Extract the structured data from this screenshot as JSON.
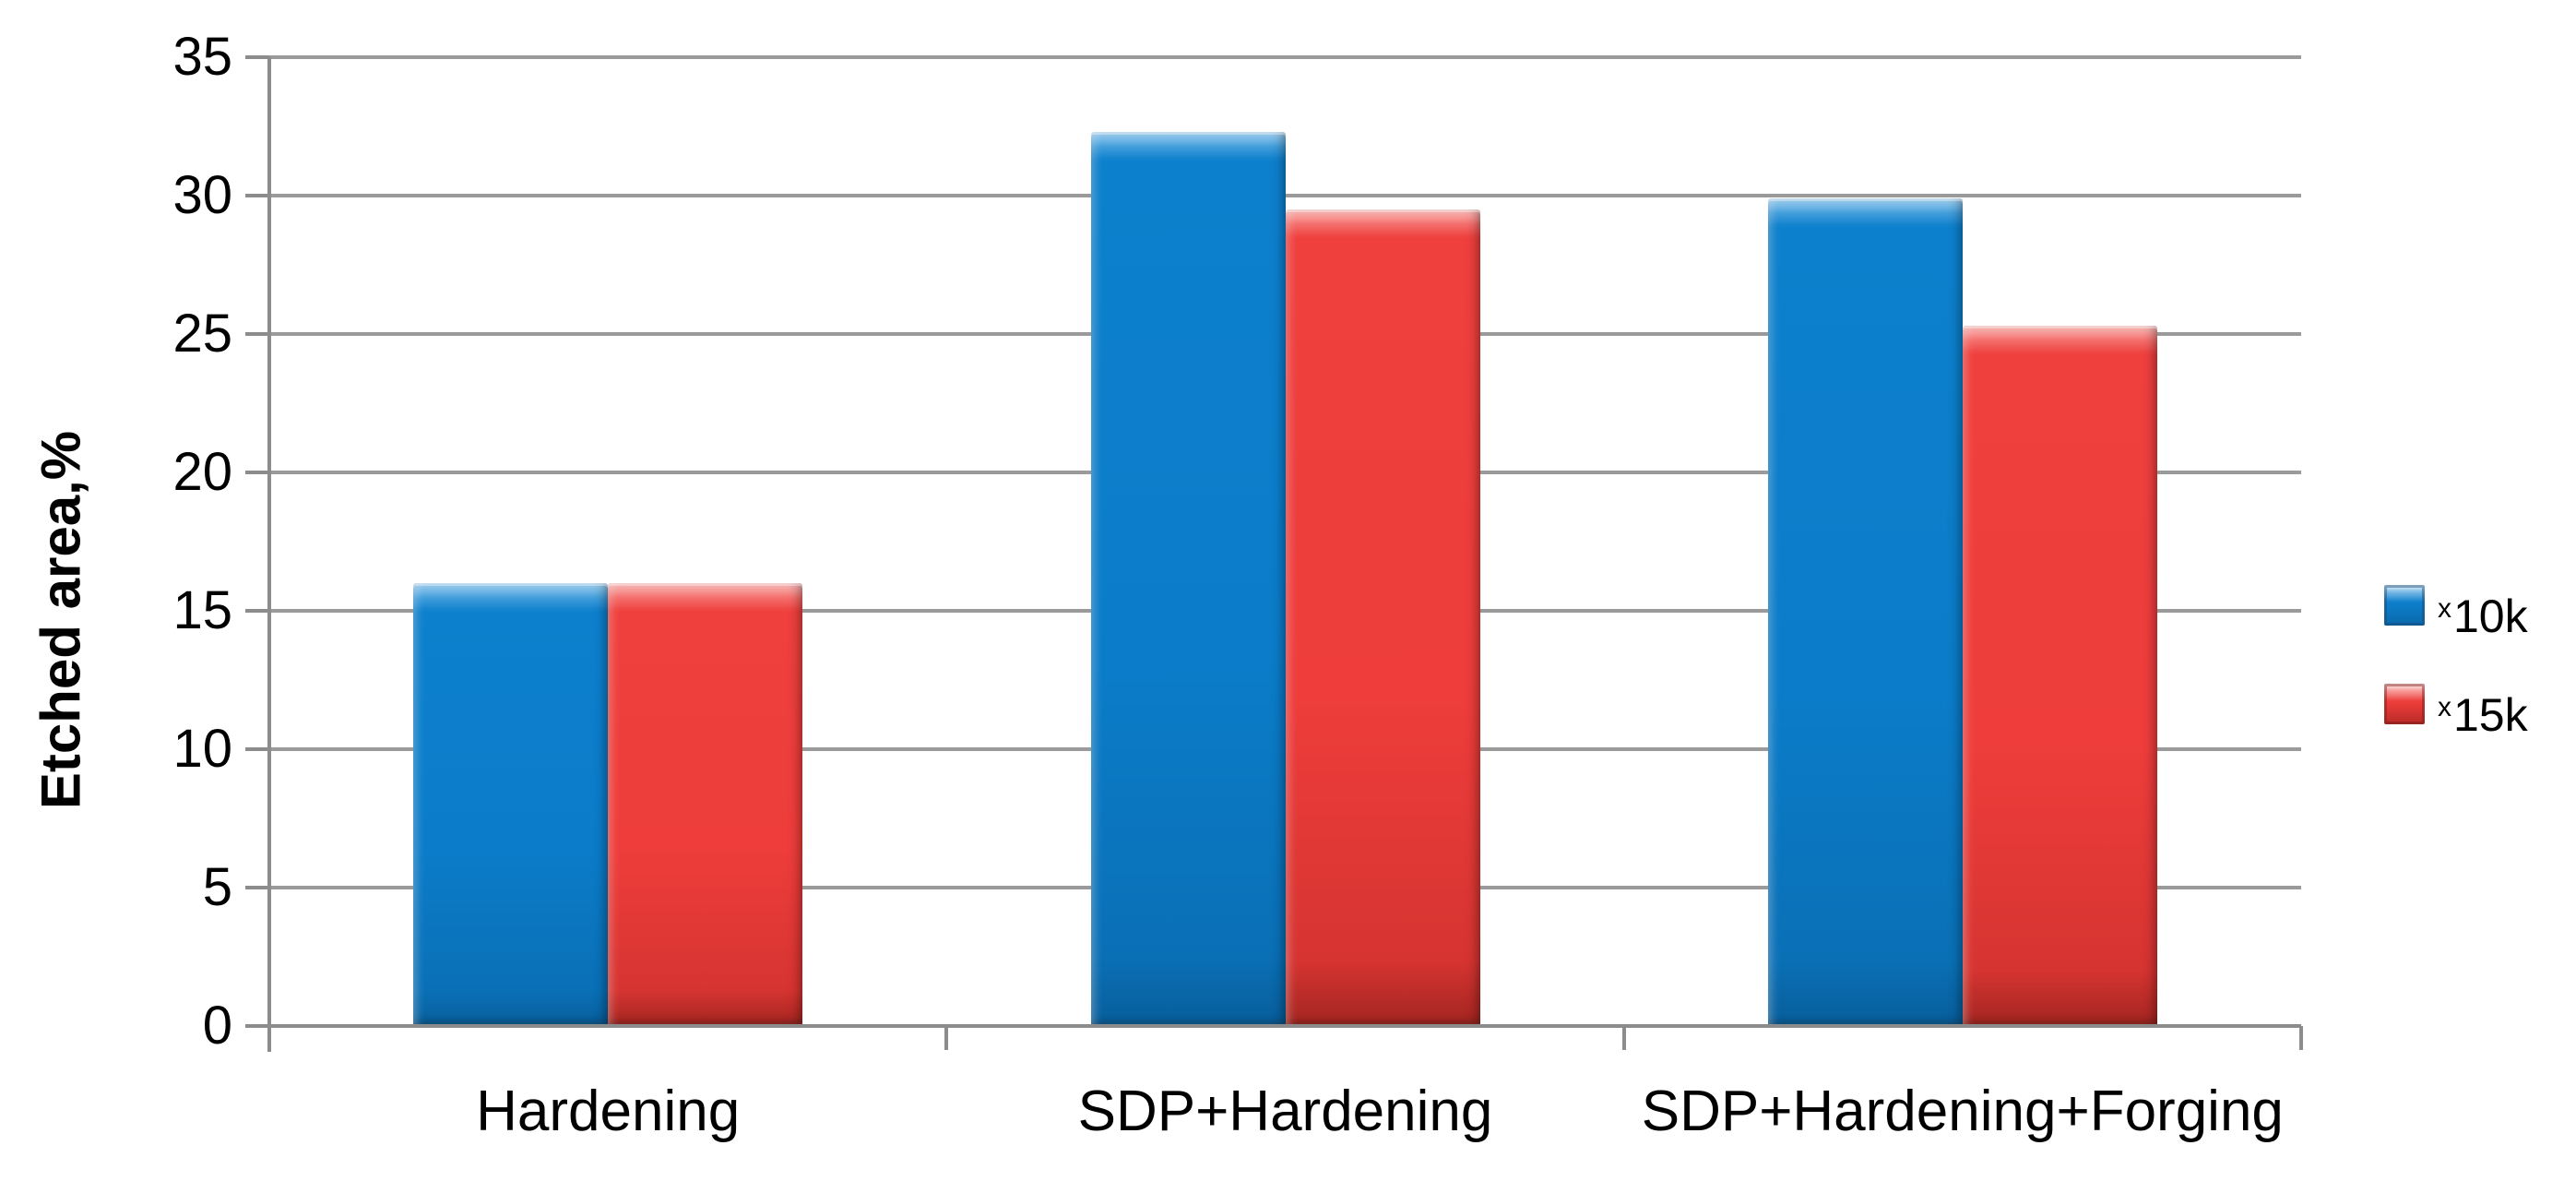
{
  "chart_data": {
    "type": "bar",
    "title": "",
    "ylabel": "Etched area,%",
    "xlabel": "",
    "categories": [
      "Hardening",
      "SDP+Hardening",
      "SDP+Hardening+Forging"
    ],
    "series": [
      {
        "name": "x10k",
        "legend_sup": "x",
        "legend_label": "10k",
        "color": "#0b7dca",
        "values": [
          16,
          32.3,
          29.9
        ]
      },
      {
        "name": "x15k",
        "legend_sup": "x",
        "legend_label": "15k",
        "color": "#ee3d3b",
        "values": [
          16,
          29.5,
          25.3
        ]
      }
    ],
    "y_axis": {
      "min": 0,
      "max": 35,
      "step": 5,
      "ticks": [
        0,
        5,
        10,
        15,
        20,
        25,
        30,
        35
      ]
    },
    "grid": true,
    "legend_position": "right",
    "colors": {
      "gridline": "#9a9a9a",
      "axis": "#8c8c8c",
      "bar_blue": "#0b7dca",
      "bar_red": "#ee3d3b",
      "text": "#000000"
    }
  }
}
